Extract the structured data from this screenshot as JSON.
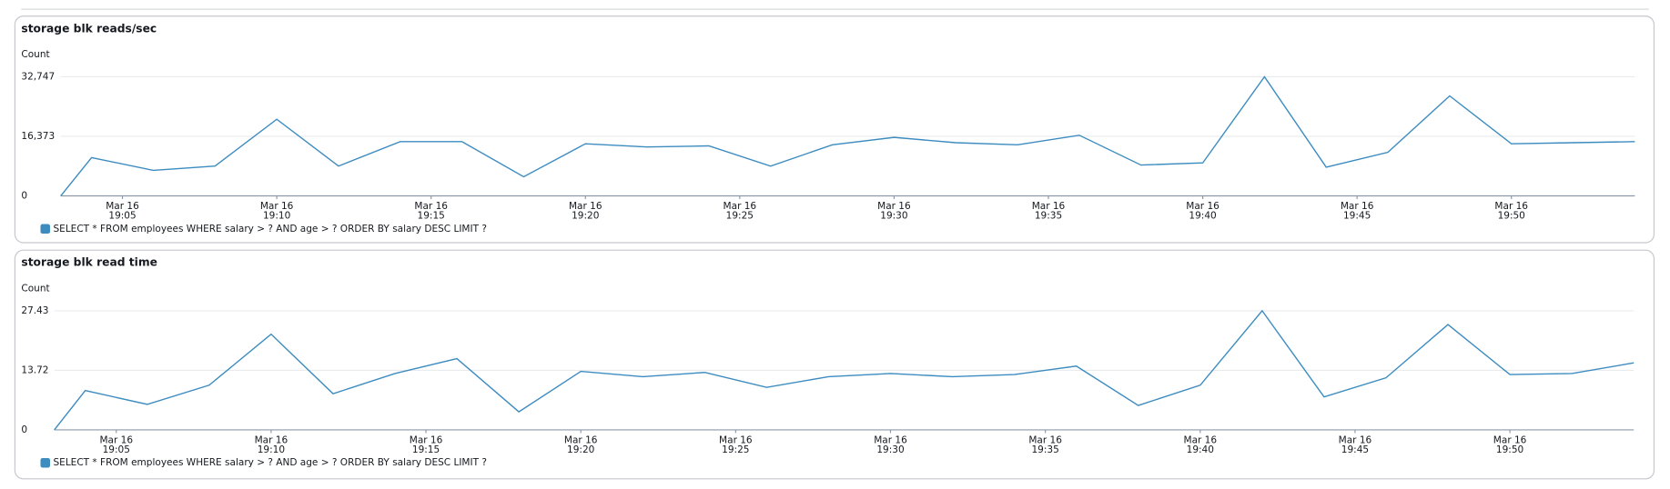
{
  "chart_data": [
    {
      "type": "line",
      "title": "storage blk reads/sec",
      "ylabel": "Count",
      "x": [
        "19:03",
        "19:04",
        "19:06",
        "19:08",
        "19:10",
        "19:12",
        "19:14",
        "19:16",
        "19:18",
        "19:20",
        "19:22",
        "19:24",
        "19:26",
        "19:28",
        "19:30",
        "19:32",
        "19:34",
        "19:36",
        "19:38",
        "19:40",
        "19:42",
        "19:44",
        "19:46",
        "19:48",
        "19:50",
        "19:52",
        "19:54"
      ],
      "xlim": [
        "19:03",
        "19:54"
      ],
      "xtick_date": "Mar 16",
      "xticks": [
        "19:05",
        "19:10",
        "19:15",
        "19:20",
        "19:25",
        "19:30",
        "19:35",
        "19:40",
        "19:45",
        "19:50"
      ],
      "ylim": [
        0,
        32747
      ],
      "yticks": [
        0,
        {
          "value": 16373,
          "label": "16,373"
        },
        {
          "value": 32747,
          "label": "32,747"
        }
      ],
      "grid": true,
      "series": [
        {
          "name": "SELECT * FROM employees WHERE salary > ? AND age > ? ORDER BY salary DESC LIMIT ?",
          "color": "#3d8cc0",
          "values": [
            0,
            10526,
            7017,
            8187,
            21052,
            8187,
            14911,
            14911,
            5263,
            14327,
            13450,
            13742,
            8187,
            14034,
            16081,
            14619,
            14034,
            16666,
            8479,
            9064,
            32747,
            7894,
            11988,
            27484,
            14327,
            14619,
            14911
          ]
        }
      ]
    },
    {
      "type": "line",
      "title": "storage blk read time",
      "ylabel": "Count",
      "x": [
        "19:03",
        "19:04",
        "19:06",
        "19:08",
        "19:10",
        "19:12",
        "19:14",
        "19:16",
        "19:18",
        "19:20",
        "19:22",
        "19:24",
        "19:26",
        "19:28",
        "19:30",
        "19:32",
        "19:34",
        "19:36",
        "19:38",
        "19:40",
        "19:42",
        "19:44",
        "19:46",
        "19:48",
        "19:50",
        "19:52",
        "19:54"
      ],
      "xlim": [
        "19:03",
        "19:54"
      ],
      "xtick_date": "Mar 16",
      "xticks": [
        "19:05",
        "19:10",
        "19:15",
        "19:20",
        "19:25",
        "19:30",
        "19:35",
        "19:40",
        "19:45",
        "19:50"
      ],
      "ylim": [
        0,
        27.43
      ],
      "yticks": [
        0,
        13.72,
        27.43
      ],
      "grid": true,
      "series": [
        {
          "name": "SELECT * FROM employees WHERE salary > ? AND age > ? ORDER BY salary DESC LIMIT ?",
          "color": "#3d8cc0",
          "values": [
            0,
            9.06,
            5.88,
            10.29,
            22.04,
            8.33,
            12.98,
            16.41,
            4.16,
            13.47,
            12.25,
            13.23,
            9.8,
            12.25,
            12.98,
            12.25,
            12.74,
            14.69,
            5.63,
            10.29,
            27.43,
            7.59,
            12.0,
            24.25,
            12.74,
            12.98,
            15.43
          ]
        }
      ]
    }
  ]
}
